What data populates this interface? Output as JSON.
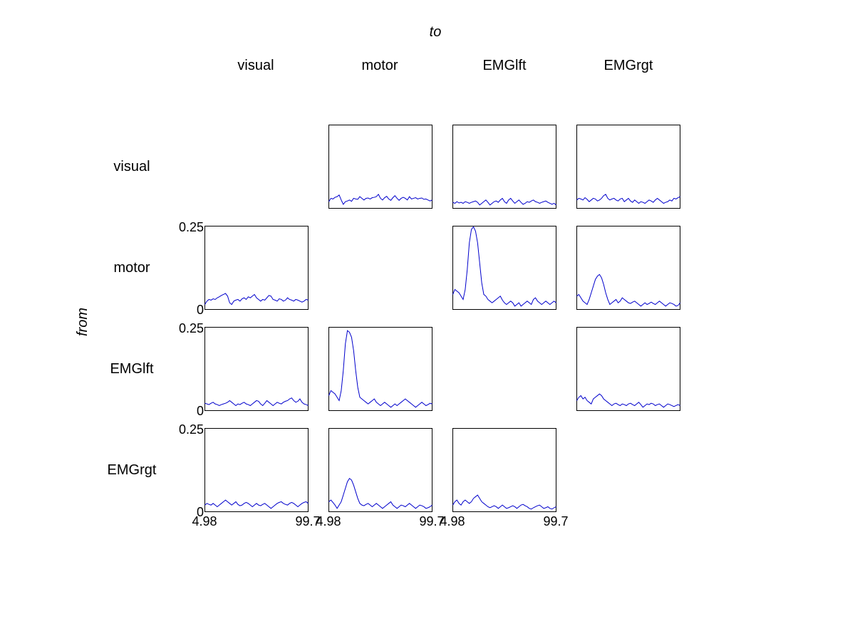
{
  "labels": {
    "to": "to",
    "from": "from",
    "columns": [
      "visual",
      "motor",
      "EMGlft",
      "EMGrgt"
    ],
    "rows": [
      "visual",
      "motor",
      "EMGlft",
      "EMGrgt"
    ]
  },
  "colors": {
    "line": "#0000cc",
    "axes": "#000000"
  },
  "chart_data": {
    "type": "line",
    "x_ticks": [
      "4.98",
      "99.7"
    ],
    "y_ticks": [
      "0",
      "0.25"
    ],
    "xlim": [
      4.98,
      99.7
    ],
    "ylim": [
      0,
      0.25
    ],
    "x_step": 1.895,
    "panels": [
      {
        "row": 0,
        "col": 1,
        "values": [
          0.02,
          0.03,
          0.028,
          0.033,
          0.035,
          0.04,
          0.025,
          0.012,
          0.02,
          0.022,
          0.025,
          0.021,
          0.03,
          0.028,
          0.027,
          0.035,
          0.03,
          0.025,
          0.03,
          0.031,
          0.028,
          0.032,
          0.033,
          0.035,
          0.042,
          0.03,
          0.025,
          0.032,
          0.036,
          0.028,
          0.024,
          0.032,
          0.038,
          0.03,
          0.024,
          0.03,
          0.033,
          0.03,
          0.025,
          0.035,
          0.028,
          0.03,
          0.032,
          0.028,
          0.03,
          0.031,
          0.027,
          0.028,
          0.025,
          0.022,
          0.025
        ]
      },
      {
        "row": 0,
        "col": 2,
        "values": [
          0.018,
          0.015,
          0.02,
          0.016,
          0.018,
          0.015,
          0.02,
          0.018,
          0.015,
          0.018,
          0.02,
          0.022,
          0.018,
          0.01,
          0.015,
          0.02,
          0.025,
          0.018,
          0.01,
          0.015,
          0.02,
          0.022,
          0.018,
          0.025,
          0.03,
          0.02,
          0.015,
          0.025,
          0.03,
          0.022,
          0.015,
          0.02,
          0.025,
          0.018,
          0.012,
          0.015,
          0.02,
          0.018,
          0.022,
          0.025,
          0.02,
          0.018,
          0.015,
          0.018,
          0.02,
          0.022,
          0.018,
          0.015,
          0.012,
          0.015,
          0.01
        ]
      },
      {
        "row": 0,
        "col": 3,
        "values": [
          0.025,
          0.03,
          0.028,
          0.025,
          0.032,
          0.027,
          0.02,
          0.025,
          0.03,
          0.028,
          0.022,
          0.025,
          0.03,
          0.038,
          0.042,
          0.03,
          0.025,
          0.028,
          0.03,
          0.025,
          0.022,
          0.028,
          0.03,
          0.02,
          0.025,
          0.03,
          0.022,
          0.018,
          0.025,
          0.02,
          0.015,
          0.02,
          0.018,
          0.015,
          0.02,
          0.025,
          0.022,
          0.018,
          0.025,
          0.03,
          0.025,
          0.02,
          0.015,
          0.018,
          0.02,
          0.025,
          0.022,
          0.03,
          0.028,
          0.032,
          0.035
        ]
      },
      {
        "row": 1,
        "col": 0,
        "values": [
          0.015,
          0.025,
          0.03,
          0.028,
          0.032,
          0.03,
          0.035,
          0.038,
          0.042,
          0.045,
          0.048,
          0.04,
          0.02,
          0.015,
          0.025,
          0.028,
          0.03,
          0.025,
          0.032,
          0.035,
          0.03,
          0.038,
          0.035,
          0.04,
          0.045,
          0.035,
          0.03,
          0.025,
          0.03,
          0.028,
          0.035,
          0.042,
          0.04,
          0.03,
          0.028,
          0.025,
          0.032,
          0.03,
          0.025,
          0.028,
          0.035,
          0.03,
          0.028,
          0.025,
          0.03,
          0.028,
          0.025,
          0.022,
          0.025,
          0.03,
          0.028
        ]
      },
      {
        "row": 1,
        "col": 2,
        "values": [
          0.045,
          0.06,
          0.055,
          0.05,
          0.04,
          0.03,
          0.06,
          0.12,
          0.2,
          0.24,
          0.248,
          0.235,
          0.2,
          0.14,
          0.08,
          0.045,
          0.04,
          0.03,
          0.025,
          0.02,
          0.025,
          0.03,
          0.035,
          0.04,
          0.028,
          0.02,
          0.015,
          0.02,
          0.025,
          0.02,
          0.01,
          0.015,
          0.02,
          0.01,
          0.015,
          0.02,
          0.025,
          0.02,
          0.015,
          0.03,
          0.035,
          0.025,
          0.02,
          0.015,
          0.02,
          0.025,
          0.02,
          0.015,
          0.02,
          0.025,
          0.02
        ]
      },
      {
        "row": 1,
        "col": 3,
        "values": [
          0.04,
          0.045,
          0.035,
          0.025,
          0.02,
          0.015,
          0.03,
          0.05,
          0.07,
          0.09,
          0.1,
          0.105,
          0.095,
          0.075,
          0.05,
          0.03,
          0.015,
          0.02,
          0.025,
          0.03,
          0.02,
          0.025,
          0.035,
          0.03,
          0.025,
          0.02,
          0.018,
          0.022,
          0.025,
          0.02,
          0.015,
          0.01,
          0.015,
          0.02,
          0.015,
          0.018,
          0.022,
          0.018,
          0.015,
          0.02,
          0.025,
          0.02,
          0.015,
          0.01,
          0.015,
          0.02,
          0.018,
          0.015,
          0.01,
          0.012,
          0.02
        ]
      },
      {
        "row": 2,
        "col": 0,
        "values": [
          0.022,
          0.02,
          0.018,
          0.022,
          0.025,
          0.02,
          0.018,
          0.015,
          0.018,
          0.02,
          0.022,
          0.025,
          0.03,
          0.025,
          0.02,
          0.015,
          0.02,
          0.018,
          0.022,
          0.025,
          0.02,
          0.018,
          0.015,
          0.02,
          0.025,
          0.03,
          0.028,
          0.02,
          0.015,
          0.022,
          0.03,
          0.025,
          0.02,
          0.015,
          0.02,
          0.025,
          0.022,
          0.02,
          0.025,
          0.028,
          0.03,
          0.035,
          0.038,
          0.03,
          0.025,
          0.028,
          0.035,
          0.025,
          0.02,
          0.018,
          0.015
        ]
      },
      {
        "row": 2,
        "col": 1,
        "values": [
          0.045,
          0.06,
          0.055,
          0.05,
          0.04,
          0.03,
          0.06,
          0.12,
          0.2,
          0.24,
          0.235,
          0.22,
          0.18,
          0.12,
          0.07,
          0.04,
          0.035,
          0.03,
          0.025,
          0.02,
          0.025,
          0.03,
          0.035,
          0.025,
          0.02,
          0.015,
          0.02,
          0.025,
          0.02,
          0.015,
          0.01,
          0.015,
          0.02,
          0.015,
          0.02,
          0.025,
          0.03,
          0.035,
          0.03,
          0.025,
          0.02,
          0.015,
          0.01,
          0.015,
          0.02,
          0.025,
          0.02,
          0.015,
          0.018,
          0.022,
          0.02
        ]
      },
      {
        "row": 2,
        "col": 3,
        "values": [
          0.03,
          0.04,
          0.045,
          0.035,
          0.04,
          0.03,
          0.025,
          0.02,
          0.035,
          0.04,
          0.045,
          0.05,
          0.045,
          0.035,
          0.03,
          0.025,
          0.02,
          0.015,
          0.02,
          0.022,
          0.018,
          0.015,
          0.02,
          0.018,
          0.015,
          0.02,
          0.022,
          0.018,
          0.015,
          0.02,
          0.025,
          0.018,
          0.01,
          0.015,
          0.02,
          0.018,
          0.022,
          0.02,
          0.015,
          0.018,
          0.02,
          0.015,
          0.01,
          0.015,
          0.02,
          0.018,
          0.015,
          0.012,
          0.015,
          0.018,
          0.015
        ]
      },
      {
        "row": 3,
        "col": 0,
        "values": [
          0.02,
          0.025,
          0.022,
          0.02,
          0.025,
          0.02,
          0.015,
          0.02,
          0.025,
          0.03,
          0.035,
          0.03,
          0.025,
          0.02,
          0.025,
          0.03,
          0.022,
          0.018,
          0.02,
          0.025,
          0.028,
          0.025,
          0.02,
          0.015,
          0.02,
          0.025,
          0.02,
          0.018,
          0.022,
          0.025,
          0.02,
          0.015,
          0.01,
          0.015,
          0.02,
          0.025,
          0.028,
          0.03,
          0.025,
          0.022,
          0.02,
          0.025,
          0.028,
          0.025,
          0.02,
          0.015,
          0.02,
          0.025,
          0.028,
          0.03,
          0.025
        ]
      },
      {
        "row": 3,
        "col": 1,
        "values": [
          0.03,
          0.035,
          0.028,
          0.02,
          0.01,
          0.02,
          0.03,
          0.05,
          0.07,
          0.09,
          0.1,
          0.095,
          0.08,
          0.06,
          0.04,
          0.025,
          0.02,
          0.018,
          0.022,
          0.025,
          0.02,
          0.015,
          0.02,
          0.025,
          0.02,
          0.015,
          0.01,
          0.015,
          0.02,
          0.025,
          0.03,
          0.02,
          0.015,
          0.01,
          0.015,
          0.02,
          0.018,
          0.015,
          0.02,
          0.025,
          0.02,
          0.015,
          0.01,
          0.015,
          0.02,
          0.018,
          0.015,
          0.01,
          0.012,
          0.015,
          0.02
        ]
      },
      {
        "row": 3,
        "col": 2,
        "values": [
          0.02,
          0.03,
          0.035,
          0.025,
          0.02,
          0.03,
          0.035,
          0.03,
          0.025,
          0.03,
          0.04,
          0.045,
          0.05,
          0.04,
          0.03,
          0.025,
          0.02,
          0.015,
          0.012,
          0.015,
          0.018,
          0.015,
          0.01,
          0.015,
          0.02,
          0.015,
          0.01,
          0.012,
          0.015,
          0.018,
          0.015,
          0.01,
          0.015,
          0.02,
          0.022,
          0.018,
          0.015,
          0.01,
          0.008,
          0.012,
          0.015,
          0.018,
          0.02,
          0.015,
          0.01,
          0.012,
          0.015,
          0.01,
          0.008,
          0.012,
          0.015
        ]
      }
    ]
  }
}
